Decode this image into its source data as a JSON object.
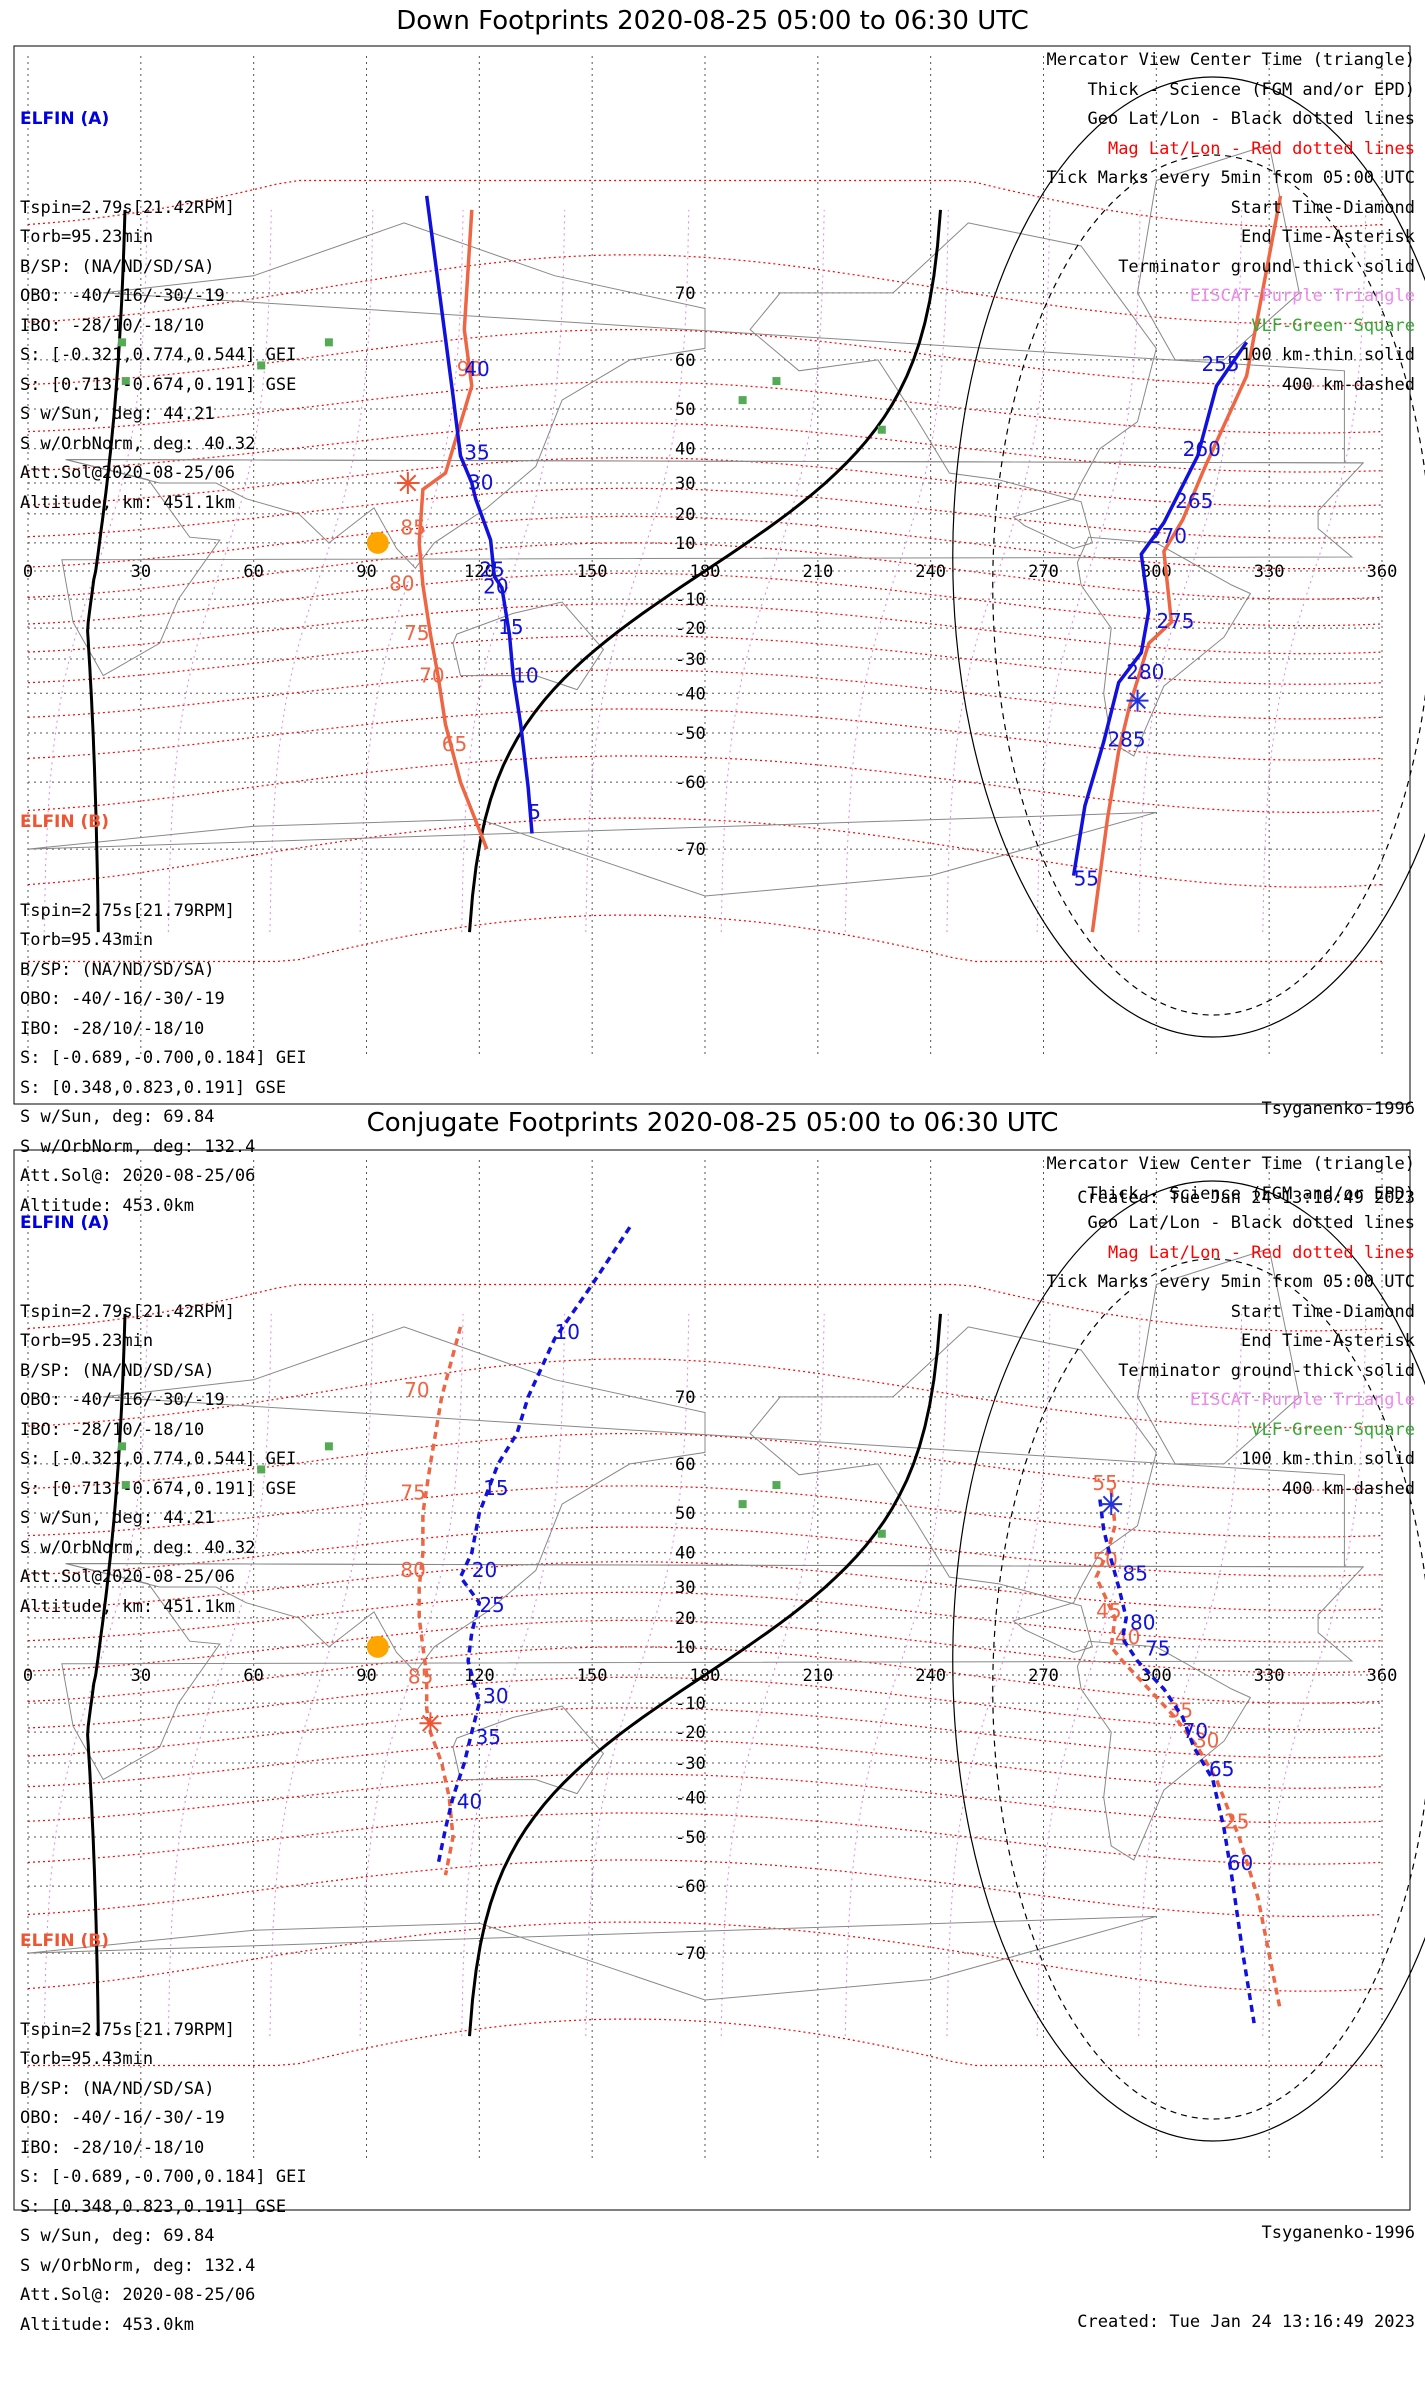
{
  "panels": [
    {
      "title": "Down Footprints 2020-08-25 05:00 to 06:30 UTC",
      "elfin_a": {
        "name": "ELFIN (A)",
        "lines": [
          "Tspin=2.79s[21.42RPM]",
          "Torb=95.23min",
          "B/SP: (NA/ND/SD/SA)",
          "OBO: -40/-16/-30/-19",
          "IBO: -28/10/-18/10",
          "S: [-0.321,0.774,0.544] GEI",
          "S: [0.713,-0.674,0.191] GSE",
          "S w/Sun, deg: 44.21",
          "S w/OrbNorm, deg: 40.32",
          "Att.Sol@2020-08-25/06",
          "Altitude, km: 451.1km"
        ]
      },
      "elfin_b": {
        "name": "ELFIN (B)",
        "lines": [
          "Tspin=2.75s[21.79RPM]",
          "Torb=95.43min",
          "B/SP: (NA/ND/SD/SA)",
          "OBO: -40/-16/-30/-19",
          "IBO: -28/10/-18/10",
          "S: [-0.689,-0.700,0.184] GEI",
          "S: [0.348,0.823,0.191] GSE",
          "S w/Sun, deg: 69.84",
          "S w/OrbNorm, deg: 132.4",
          "Att.Sol@: 2020-08-25/06",
          "Altitude: 453.0km"
        ]
      },
      "legend": [
        {
          "text": "Mercator View Center Time (triangle)",
          "color": "#000000"
        },
        {
          "text": "Thick - Science (FGM and/or EPD)",
          "color": "#000000"
        },
        {
          "text": "Geo Lat/Lon - Black dotted lines",
          "color": "#000000"
        },
        {
          "text": "Mag Lat/Lon - Red dotted lines",
          "color": "#ff0000"
        },
        {
          "text": "Tick Marks every 5min from 05:00 UTC",
          "color": "#000000"
        },
        {
          "text": "Start Time-Diamond",
          "color": "#000000"
        },
        {
          "text": "End Time-Asterisk",
          "color": "#000000"
        },
        {
          "text": "Terminator ground-thick solid",
          "color": "#000000"
        },
        {
          "text": "EISCAT-Purple Triangle",
          "color": "#ee88ee"
        },
        {
          "text": "VLF-Green Square",
          "color": "#33aa33"
        },
        {
          "text": "100 km-thin solid",
          "color": "#000000"
        },
        {
          "text": "400 km-dashed",
          "color": "#000000"
        }
      ],
      "model": "Tsyganenko-1996",
      "created": "Created: Tue Jan 24 13:16:49 2023",
      "track_a": {
        "style": "solid",
        "points": [
          [
            106,
            79
          ],
          [
            113,
            53
          ],
          [
            115,
            38
          ],
          [
            118,
            30
          ],
          [
            119,
            25
          ],
          [
            123,
            11
          ],
          [
            124,
            -2
          ],
          [
            126,
            -6
          ],
          [
            128,
            -22
          ],
          [
            129,
            -35
          ],
          [
            131,
            -48
          ],
          [
            133,
            -61
          ],
          [
            134,
            -68
          ]
        ],
        "labels": [
          {
            "t": "40",
            "lon": 116,
            "lat": 57
          },
          {
            "t": "35",
            "lon": 116,
            "lat": 37
          },
          {
            "t": "30",
            "lon": 117,
            "lat": 28
          },
          {
            "t": "25",
            "lon": 120,
            "lat": -2
          },
          {
            "t": "20",
            "lon": 121,
            "lat": -8
          },
          {
            "t": "15",
            "lon": 125,
            "lat": -22
          },
          {
            "t": "10",
            "lon": 129,
            "lat": -37
          },
          {
            "t": "5",
            "lon": 133,
            "lat": -66
          }
        ]
      },
      "track_b": {
        "style": "solid",
        "points": [
          [
            118,
            78
          ],
          [
            116,
            65
          ],
          [
            118,
            55
          ],
          [
            111,
            33
          ],
          [
            105,
            28
          ],
          [
            104,
            10
          ],
          [
            105,
            -5
          ],
          [
            107,
            -22
          ],
          [
            109,
            -35
          ],
          [
            111,
            -48
          ],
          [
            115,
            -60
          ],
          [
            122,
            -70
          ]
        ],
        "labels": [
          {
            "t": "90",
            "lon": 114,
            "lat": 57
          },
          {
            "t": "85",
            "lon": 99,
            "lat": 13
          },
          {
            "t": "80",
            "lon": 96,
            "lat": -7
          },
          {
            "t": "75",
            "lon": 100,
            "lat": -24
          },
          {
            "t": "70",
            "lon": 104,
            "lat": -37
          },
          {
            "t": "65",
            "lon": 110,
            "lat": -54
          }
        ]
      },
      "track_a2": {
        "style": "solid",
        "points": [
          [
            324,
            63
          ],
          [
            316,
            55
          ],
          [
            311,
            38
          ],
          [
            302,
            17
          ],
          [
            296,
            6
          ],
          [
            298,
            -14
          ],
          [
            296,
            -28
          ],
          [
            290,
            -37
          ],
          [
            286,
            -52
          ],
          [
            281,
            -64
          ],
          [
            278,
            -73
          ]
        ],
        "labels": [
          {
            "t": "255",
            "lon": 312,
            "lat": 58
          },
          {
            "t": "260",
            "lon": 307,
            "lat": 38
          },
          {
            "t": "265",
            "lon": 305,
            "lat": 22
          },
          {
            "t": "270",
            "lon": 298,
            "lat": 10
          },
          {
            "t": "275",
            "lon": 300,
            "lat": -20
          },
          {
            "t": "280",
            "lon": 292,
            "lat": -36
          },
          {
            "t": "285",
            "lon": 287,
            "lat": -53
          },
          {
            "t": "55",
            "lon": 278,
            "lat": -74
          }
        ]
      },
      "track_b2": {
        "style": "solid",
        "points": [
          [
            333,
            79
          ],
          [
            324,
            57
          ],
          [
            313,
            35
          ],
          [
            307,
            18
          ],
          [
            302,
            7
          ],
          [
            304,
            -18
          ],
          [
            298,
            -25
          ],
          [
            293,
            -43
          ],
          [
            290,
            -54
          ],
          [
            287,
            -66
          ],
          [
            283,
            -78
          ]
        ],
        "labels": []
      },
      "sun": {
        "lon": 93,
        "lat": 10
      },
      "start_marker": {
        "lon": 101,
        "lat": 30
      },
      "start_marker_b": {
        "lon": 295,
        "lat": -42
      }
    },
    {
      "title": "Conjugate Footprints 2020-08-25 05:00 to 06:30 UTC",
      "elfin_a": {
        "name": "ELFIN (A)",
        "lines": [
          "Tspin=2.79s[21.42RPM]",
          "Torb=95.23min",
          "B/SP: (NA/ND/SD/SA)",
          "OBO: -40/-16/-30/-19",
          "IBO: -28/10/-18/10",
          "S: [-0.321,0.774,0.544] GEI",
          "S: [0.713,-0.674,0.191] GSE",
          "S w/Sun, deg: 44.21",
          "S w/OrbNorm, deg: 40.32",
          "Att.Sol@2020-08-25/06",
          "Altitude, km: 451.1km"
        ]
      },
      "elfin_b": {
        "name": "ELFIN (B)",
        "lines": [
          "Tspin=2.75s[21.79RPM]",
          "Torb=95.43min",
          "B/SP: (NA/ND/SD/SA)",
          "OBO: -40/-16/-30/-19",
          "IBO: -28/10/-18/10",
          "S: [-0.689,-0.700,0.184] GEI",
          "S: [0.348,0.823,0.191] GSE",
          "S w/Sun, deg: 69.84",
          "S w/OrbNorm, deg: 132.4",
          "Att.Sol@: 2020-08-25/06",
          "Altitude: 453.0km"
        ]
      },
      "legend": [
        {
          "text": "Mercator View Center Time (triangle)",
          "color": "#000000"
        },
        {
          "text": "Thick - Science (FGM and/or EPD)",
          "color": "#000000"
        },
        {
          "text": "Geo Lat/Lon - Black dotted lines",
          "color": "#000000"
        },
        {
          "text": "Mag Lat/Lon - Red dotted lines",
          "color": "#ff0000"
        },
        {
          "text": "Tick Marks every 5min from 05:00 UTC",
          "color": "#000000"
        },
        {
          "text": "Start Time-Diamond",
          "color": "#000000"
        },
        {
          "text": "End Time-Asterisk",
          "color": "#000000"
        },
        {
          "text": "Terminator ground-thick solid",
          "color": "#000000"
        },
        {
          "text": "EISCAT-Purple Triangle",
          "color": "#ee88ee"
        },
        {
          "text": "VLF-Green Square",
          "color": "#33aa33"
        },
        {
          "text": "100 km-thin solid",
          "color": "#000000"
        },
        {
          "text": "400 km-dashed",
          "color": "#000000"
        }
      ],
      "model": "Tsyganenko-1996",
      "created": "Created: Tue Jan 24 13:16:49 2023",
      "track_a": {
        "style": "dashed",
        "points": [
          [
            160,
            83
          ],
          [
            150,
            80
          ],
          [
            140,
            76
          ],
          [
            133,
            70
          ],
          [
            130,
            65
          ],
          [
            125,
            60
          ],
          [
            120,
            50
          ],
          [
            118,
            40
          ],
          [
            115,
            33
          ],
          [
            120,
            25
          ],
          [
            118,
            15
          ],
          [
            117,
            5
          ],
          [
            120,
            -10
          ],
          [
            118,
            -20
          ],
          [
            116,
            -30
          ],
          [
            113,
            -40
          ],
          [
            111,
            -48
          ],
          [
            109,
            -56
          ]
        ],
        "labels": [
          {
            "t": "10",
            "lon": 140,
            "lat": 76
          },
          {
            "t": "15",
            "lon": 121,
            "lat": 54
          },
          {
            "t": "20",
            "lon": 118,
            "lat": 33
          },
          {
            "t": "25",
            "lon": 120,
            "lat": 22
          },
          {
            "t": "30",
            "lon": 121,
            "lat": -10
          },
          {
            "t": "35",
            "lon": 119,
            "lat": -24
          },
          {
            "t": "40",
            "lon": 114,
            "lat": -43
          }
        ]
      },
      "track_b": {
        "style": "dashed",
        "points": [
          [
            115,
            77
          ],
          [
            110,
            70
          ],
          [
            107,
            60
          ],
          [
            105,
            50
          ],
          [
            105,
            40
          ],
          [
            104,
            30
          ],
          [
            104,
            20
          ],
          [
            105,
            10
          ],
          [
            106,
            0
          ],
          [
            106,
            -12
          ],
          [
            107,
            -20
          ],
          [
            110,
            -30
          ],
          [
            112,
            -40
          ],
          [
            113,
            -50
          ],
          [
            111,
            -58
          ]
        ],
        "labels": [
          {
            "t": "70",
            "lon": 100,
            "lat": 70
          },
          {
            "t": "75",
            "lon": 99,
            "lat": 53
          },
          {
            "t": "80",
            "lon": 99,
            "lat": 33
          },
          {
            "t": "85",
            "lon": 101,
            "lat": -3
          }
        ]
      },
      "track_a2": {
        "style": "dashed",
        "points": [
          [
            285,
            53
          ],
          [
            286,
            46
          ],
          [
            288,
            38
          ],
          [
            290,
            30
          ],
          [
            292,
            20
          ],
          [
            291,
            13
          ],
          [
            295,
            5
          ],
          [
            302,
            -5
          ],
          [
            307,
            -15
          ],
          [
            310,
            -25
          ],
          [
            315,
            -35
          ],
          [
            318,
            -48
          ],
          [
            320,
            -58
          ],
          [
            323,
            -70
          ],
          [
            326,
            -77
          ]
        ],
        "labels": [
          {
            "t": "85",
            "lon": 291,
            "lat": 32
          },
          {
            "t": "80",
            "lon": 293,
            "lat": 16
          },
          {
            "t": "75",
            "lon": 297,
            "lat": 7
          },
          {
            "t": "70",
            "lon": 307,
            "lat": -22
          },
          {
            "t": "65",
            "lon": 314,
            "lat": -34
          },
          {
            "t": "60",
            "lon": 319,
            "lat": -57
          }
        ]
      },
      "track_b2": {
        "style": "dashed",
        "points": [
          [
            288,
            55
          ],
          [
            289,
            47
          ],
          [
            287,
            40
          ],
          [
            284,
            33
          ],
          [
            289,
            20
          ],
          [
            288,
            10
          ],
          [
            291,
            5
          ],
          [
            298,
            -5
          ],
          [
            305,
            -15
          ],
          [
            311,
            -25
          ],
          [
            316,
            -35
          ],
          [
            322,
            -50
          ],
          [
            327,
            -62
          ],
          [
            333,
            -76
          ]
        ],
        "labels": [
          {
            "t": "55",
            "lon": 283,
            "lat": 55
          },
          {
            "t": "50",
            "lon": 283,
            "lat": 36
          },
          {
            "t": "45",
            "lon": 284,
            "lat": 20
          },
          {
            "t": "40",
            "lon": 289,
            "lat": 11
          },
          {
            "t": "35",
            "lon": 303,
            "lat": -15
          },
          {
            "t": "30",
            "lon": 310,
            "lat": -25
          },
          {
            "t": "25",
            "lon": 318,
            "lat": -48
          }
        ]
      },
      "sun": {
        "lon": 93,
        "lat": 10
      },
      "start_marker": {
        "lon": 107,
        "lat": -17
      },
      "start_marker_b": {
        "lon": 288,
        "lat": 52
      }
    }
  ],
  "axes": {
    "lon_ticks": [
      "0",
      "30",
      "60",
      "90",
      "120",
      "150",
      "180",
      "210",
      "240",
      "270",
      "300",
      "330",
      "360"
    ],
    "lat_ticks_north": [
      "10",
      "20",
      "30",
      "40",
      "50",
      "60",
      "70"
    ],
    "lat_ticks_south": [
      "-10",
      "-20",
      "-30",
      "-40",
      "-50",
      "-60",
      "-70"
    ]
  }
}
